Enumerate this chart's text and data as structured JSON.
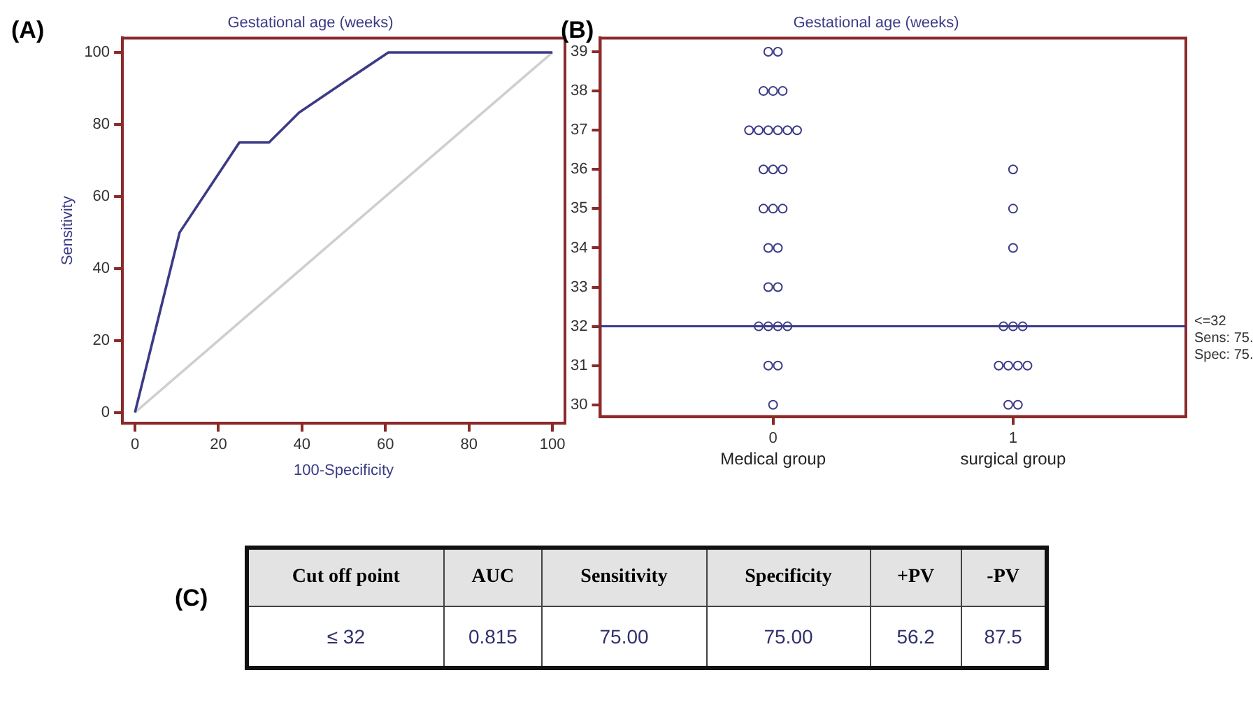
{
  "chart_data": [
    {
      "type": "line",
      "title": "Gestational age (weeks)",
      "xlabel": "100-Specificity",
      "ylabel": "Sensitivity",
      "xlim": [
        -3,
        103
      ],
      "ylim": [
        -3,
        104
      ],
      "xticks": [
        0,
        20,
        40,
        60,
        80,
        100
      ],
      "yticks": [
        0,
        20,
        40,
        60,
        80,
        100
      ],
      "grid": false,
      "legend": false,
      "marker": "none",
      "line_style": "solid",
      "annotations": [
        "(A)"
      ],
      "series": [
        {
          "color": "#3b3b86",
          "x": [
            0,
            0,
            3.57,
            10.7,
            25,
            32.1,
            39.3,
            50,
            60.7,
            100
          ],
          "values": [
            0,
            0,
            16.7,
            50,
            75,
            75,
            83.3,
            91.7,
            100,
            100
          ]
        },
        {
          "color": "#cfcfcf",
          "x": [
            0,
            100
          ],
          "values": [
            0,
            100
          ]
        }
      ]
    },
    {
      "type": "scatter",
      "title": "Gestational age (weeks)",
      "xlim": [
        -0.72,
        1.72
      ],
      "ylim": [
        29.7,
        39.35
      ],
      "xticks": [
        0,
        1
      ],
      "yticks": [
        30,
        31,
        32,
        33,
        34,
        35,
        36,
        37,
        38,
        39
      ],
      "grid": false,
      "legend": false,
      "marker": "circle",
      "annotations": [
        "(B)",
        "Medical group",
        "surgical group"
      ],
      "ref_lines": [
        {
          "axis": "y",
          "value": 32,
          "label": "<=32\nSens: 75.\nSpec: 75.",
          "color": "#3b3b86"
        }
      ],
      "series": [
        {
          "color": "#3b3b86",
          "x": [
            -0.02,
            0.02,
            -0.04,
            0,
            0.04,
            -0.1,
            -0.06,
            -0.02,
            0.02,
            0.06,
            0.1,
            -0.04,
            0,
            0.04,
            -0.04,
            0,
            0.04,
            -0.02,
            0.02,
            -0.02,
            0.02,
            -0.06,
            -0.02,
            0.02,
            0.06,
            -0.02,
            0.02,
            0
          ],
          "values": [
            39,
            39,
            38,
            38,
            38,
            37,
            37,
            37,
            37,
            37,
            37,
            36,
            36,
            36,
            35,
            35,
            35,
            34,
            34,
            33,
            33,
            32,
            32,
            32,
            32,
            31,
            31,
            30
          ]
        },
        {
          "color": "#3b3b86",
          "x": [
            1,
            1,
            1,
            0.96,
            1,
            1.04,
            0.94,
            0.98,
            1.02,
            1.06,
            0.98,
            1.02
          ],
          "values": [
            36,
            35,
            34,
            32,
            32,
            32,
            31,
            31,
            31,
            31,
            30,
            30
          ]
        }
      ]
    },
    {
      "type": "other",
      "annotations": [
        "(C)"
      ],
      "categories": [
        "Cut off point",
        "AUC",
        "Sensitivity",
        "Specificity",
        "+PV",
        "-PV"
      ],
      "value_labels": [
        "≤ 32",
        "0.815",
        "75.00",
        "75.00",
        "56.2",
        "87.5"
      ]
    }
  ]
}
